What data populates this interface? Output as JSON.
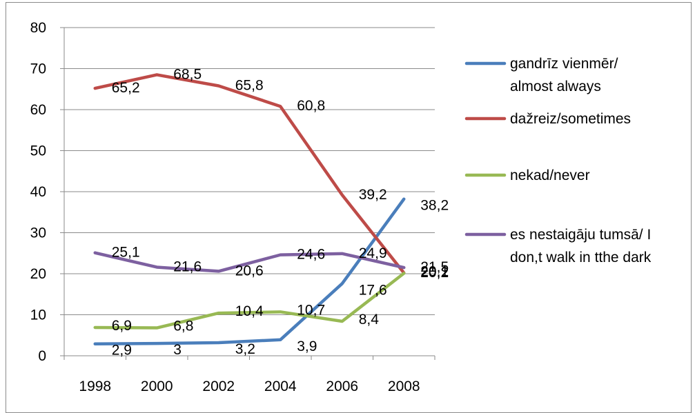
{
  "chart_data": {
    "type": "line",
    "title": "",
    "xlabel": "",
    "ylabel": "",
    "categories": [
      "1998",
      "2000",
      "2002",
      "2004",
      "2006",
      "2008"
    ],
    "y_ticks": [
      "0",
      "10",
      "20",
      "30",
      "40",
      "50",
      "60",
      "70",
      "80"
    ],
    "ylim": [
      0,
      80
    ],
    "grid": "horizontal",
    "legend_position": "right",
    "series": [
      {
        "name": "gandrīz vienmēr/ almost always",
        "legend_lines": [
          "gandrīz vienmēr/",
          "almost always"
        ],
        "color": "#4a7ebb",
        "values": [
          2.9,
          3,
          3.2,
          3.9,
          17.6,
          38.2
        ],
        "labels": [
          "2,9",
          "3",
          "3,2",
          "3,9",
          "17,6",
          "38,2"
        ]
      },
      {
        "name": "dažreiz/sometimes",
        "legend_lines": [
          "dažreiz/sometimes"
        ],
        "color": "#be4b48",
        "values": [
          65.2,
          68.5,
          65.8,
          60.8,
          39.2,
          20.2
        ],
        "labels": [
          "65,2",
          "68,5",
          "65,8",
          "60,8",
          "39,2",
          "20,2"
        ]
      },
      {
        "name": "nekad/never",
        "legend_lines": [
          "nekad/never"
        ],
        "color": "#98b954",
        "values": [
          6.9,
          6.8,
          10.4,
          10.7,
          8.4,
          20.1
        ],
        "labels": [
          "6,9",
          "6,8",
          "10,4",
          "10,7",
          "8,4",
          "20,1"
        ]
      },
      {
        "name": "es nestaigāju tumsā/ I don,t walk in tthe dark",
        "legend_lines": [
          "es nestaigāju tumsā/  I",
          "don,t walk in tthe dark"
        ],
        "color": "#7d60a0",
        "values": [
          25.1,
          21.6,
          20.6,
          24.6,
          24.9,
          21.5
        ],
        "labels": [
          "25,1",
          "21,6",
          "20,6",
          "24,6",
          "24,9",
          "21,5"
        ]
      }
    ]
  }
}
